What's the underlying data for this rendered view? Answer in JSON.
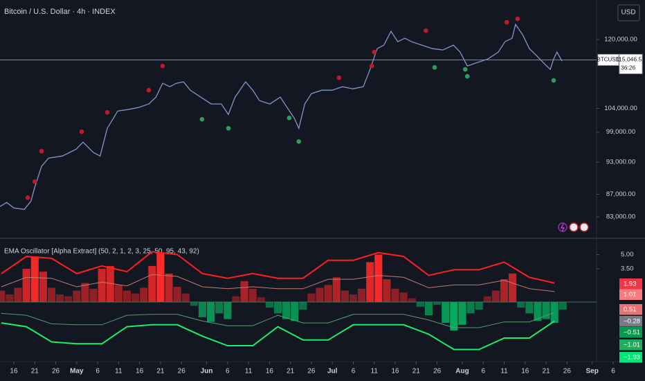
{
  "header": {
    "title": "Bitcoin / U.S. Dollar · 4h · INDEX",
    "currency": "USD"
  },
  "chart_data": [
    {
      "type": "line",
      "log_scale": true,
      "color": "#8396cc",
      "x": [
        -3.3,
        -1.7,
        0,
        2.5,
        4.1,
        5,
        6.6,
        8.3,
        11.6,
        14.9,
        16.5,
        19,
        20.6,
        22.3,
        24.8,
        27.2,
        29.7,
        32.2,
        33.9,
        35.5,
        37.2,
        38.8,
        40.5,
        42.1,
        44.6,
        47.1,
        49.5,
        51.2,
        52.8,
        55.3,
        57,
        58.6,
        61.1,
        63.6,
        65.2,
        66.9,
        68,
        69.4,
        71,
        73.5,
        76,
        78.4,
        80.9,
        83.4,
        85,
        86.7,
        88.3,
        90,
        91.6,
        93.3,
        94.9,
        97.4,
        99.9,
        102.4,
        104.9,
        106.5,
        108.2,
        110.6,
        113.1,
        115.6,
        117.2,
        118.9,
        119.7,
        121.4,
        123,
        124.7,
        126.3,
        128,
        128.8,
        129.6,
        130.8
      ],
      "values": [
        84810,
        85540,
        84550,
        84300,
        85770,
        88300,
        92190,
        93800,
        94200,
        95570,
        96960,
        94880,
        94200,
        99790,
        103450,
        103740,
        104200,
        104960,
        106470,
        109580,
        108800,
        109580,
        109910,
        108020,
        106470,
        104960,
        104960,
        102700,
        106470,
        109910,
        108020,
        105710,
        104960,
        106470,
        104200,
        101960,
        99790,
        104960,
        107240,
        108020,
        108020,
        108800,
        108330,
        108800,
        112790,
        117760,
        118620,
        122090,
        119480,
        120340,
        119480,
        118620,
        117760,
        117440,
        118620,
        116930,
        113610,
        114430,
        115250,
        116930,
        119480,
        120340,
        123860,
        121220,
        117760,
        116080,
        114430,
        112790,
        115250,
        116930,
        114750
      ],
      "markers": [
        {
          "color": "#c2182b",
          "x": [
            3.3,
            5,
            6.6,
            16.2,
            22.3,
            32.2,
            35.5,
            77.6,
            85.4,
            86,
            98.3,
            117.6,
            120.2
          ],
          "values": [
            86390,
            89310,
            95150,
            99070,
            103150,
            108020,
            113610,
            110860,
            113610,
            116930,
            122270,
            124410,
            125290
          ]
        },
        {
          "color": "#2e9e5a",
          "x": [
            44.9,
            51.2,
            65.7,
            68,
            100.4,
            107.7,
            108.2,
            128.8
          ],
          "values": [
            101680,
            99790,
            101960,
            97090,
            113270,
            112790,
            111170,
            110220
          ]
        }
      ],
      "last_price": {
        "value": 115046.51,
        "label": "115,046.51"
      },
      "symbol": "BTCUSD",
      "countdown": "36:26",
      "xlim": [
        -3.3,
        150.6
      ],
      "ylim": [
        79500,
        130300
      ],
      "yticks": [
        {
          "value": 120000,
          "label": "120,000.00"
        },
        {
          "value": 104000,
          "label": "104,000.00"
        },
        {
          "value": 99000,
          "label": "99,000.00"
        },
        {
          "value": 93000,
          "label": "93,000.00"
        },
        {
          "value": 87000,
          "label": "87,000.00"
        },
        {
          "value": 83000,
          "label": "83,000.00"
        }
      ]
    },
    {
      "type": "bar",
      "title": "EMA Oscillator [Alpha Extract] (50, 2, 1, 2, 3, 25, 50, 95, 43, 92)",
      "colors": {
        "positive": "#ff2a2a",
        "negative": "#00e676",
        "zero_line": "#3d7a5c"
      },
      "x": [
        -3,
        -1,
        1,
        3,
        5,
        7,
        9,
        11,
        13,
        15,
        17,
        19,
        21,
        23,
        25,
        27,
        29,
        31,
        33,
        35,
        37,
        39,
        41,
        43,
        45,
        47,
        49,
        51,
        53,
        55,
        57,
        59,
        61,
        63,
        65,
        67,
        69,
        71,
        73,
        75,
        77,
        79,
        81,
        83,
        85,
        87,
        89,
        91,
        93,
        95,
        97,
        99,
        101,
        103,
        105,
        107,
        109,
        111,
        113,
        115,
        117,
        119,
        121,
        123,
        125,
        127,
        129,
        131
      ],
      "values": [
        1.2,
        0.8,
        1.5,
        3.5,
        4.8,
        3.2,
        1.5,
        0.8,
        0.6,
        1.2,
        2.0,
        1.4,
        3.5,
        3.8,
        1.8,
        1.2,
        0.9,
        1.5,
        3.8,
        5.2,
        3.0,
        1.6,
        0.9,
        -0.4,
        -1.6,
        -2.1,
        -1.2,
        -1.8,
        0.6,
        2.2,
        1.4,
        0.5,
        -0.6,
        -1.2,
        -1.8,
        -2.0,
        -0.8,
        0.9,
        1.5,
        1.8,
        2.6,
        1.2,
        0.8,
        1.4,
        4.2,
        5.0,
        2.4,
        1.4,
        1.0,
        0.4,
        -0.5,
        -1.4,
        -0.3,
        -2.2,
        -3.0,
        -2.4,
        -1.2,
        -0.8,
        0.6,
        1.2,
        2.4,
        3.0,
        -0.6,
        -1.2,
        -2.0,
        -1.8,
        -2.2,
        -0.8
      ],
      "bands": {
        "x": [
          -3,
          3,
          9,
          15,
          21,
          27,
          33,
          39,
          45,
          51,
          57,
          63,
          69,
          75,
          81,
          87,
          93,
          99,
          105,
          111,
          117,
          123,
          129
        ],
        "series": [
          {
            "color": "#ff1f1f",
            "values": [
              3.0,
              4.8,
              4.6,
              3.0,
              3.8,
              3.2,
              5.3,
              5.0,
              3.0,
              2.5,
              3.0,
              2.5,
              2.5,
              4.4,
              4.4,
              5.2,
              4.8,
              2.8,
              3.4,
              3.4,
              4.2,
              2.6,
              2.0
            ]
          },
          {
            "color": "#c77a72",
            "values": [
              1.6,
              2.6,
              2.5,
              1.6,
              2.1,
              1.7,
              2.9,
              2.7,
              1.6,
              1.4,
              1.6,
              1.4,
              1.4,
              2.4,
              2.4,
              2.8,
              2.6,
              1.5,
              1.8,
              1.8,
              2.3,
              1.4,
              1.1
            ]
          },
          {
            "color": "#5f9a70",
            "values": [
              -1.2,
              -1.4,
              -2.3,
              -2.4,
              -2.4,
              -1.4,
              -1.3,
              -1.3,
              -2.0,
              -2.5,
              -2.5,
              -1.4,
              -2.2,
              -2.2,
              -1.3,
              -1.3,
              -1.3,
              -1.9,
              -2.7,
              -2.7,
              -2.1,
              -2.1,
              -1.1
            ]
          },
          {
            "color": "#1aef6a",
            "values": [
              -2.2,
              -2.6,
              -4.2,
              -4.4,
              -4.4,
              -2.6,
              -2.4,
              -2.4,
              -3.6,
              -4.6,
              -4.6,
              -2.6,
              -4.0,
              -4.0,
              -2.4,
              -2.4,
              -2.4,
              -3.4,
              -5.0,
              -5.0,
              -3.8,
              -3.8,
              -2.0
            ]
          }
        ]
      },
      "badges": {
        "values": [
          1.93,
          1.01,
          0.51,
          -0.28,
          -0.51,
          -1.01,
          -1.93
        ],
        "value_labels": [
          "1.93",
          "1.01",
          "0.51",
          "−0.28",
          "−0.51",
          "−1.01",
          "−1.93"
        ],
        "colors": [
          "#f23645",
          "#f77c80",
          "#e57373",
          "#787b86",
          "#089950",
          "#22ab5c",
          "#00e676"
        ]
      },
      "xlim": [
        -3.3,
        150.6
      ],
      "ylim": [
        -6.28,
        6.64
      ],
      "yticks": [
        {
          "value": 5,
          "label": "5.00"
        },
        {
          "value": 3.5,
          "label": "3.50"
        }
      ],
      "xticks": [
        {
          "value": 0,
          "label": "16"
        },
        {
          "value": 5,
          "label": "21"
        },
        {
          "value": 10,
          "label": "26"
        },
        {
          "value": 15,
          "label": "May"
        },
        {
          "value": 20,
          "label": "6"
        },
        {
          "value": 25,
          "label": "11"
        },
        {
          "value": 30,
          "label": "16"
        },
        {
          "value": 35,
          "label": "21"
        },
        {
          "value": 40,
          "label": "26"
        },
        {
          "value": 46,
          "label": "Jun"
        },
        {
          "value": 51,
          "label": "6"
        },
        {
          "value": 56,
          "label": "11"
        },
        {
          "value": 61,
          "label": "16"
        },
        {
          "value": 66,
          "label": "21"
        },
        {
          "value": 71,
          "label": "26"
        },
        {
          "value": 76,
          "label": "Jul"
        },
        {
          "value": 81,
          "label": "6"
        },
        {
          "value": 86,
          "label": "11"
        },
        {
          "value": 91,
          "label": "16"
        },
        {
          "value": 96,
          "label": "21"
        },
        {
          "value": 101,
          "label": "26"
        },
        {
          "value": 107,
          "label": "Aug"
        },
        {
          "value": 112,
          "label": "6"
        },
        {
          "value": 117,
          "label": "11"
        },
        {
          "value": 122,
          "label": "16"
        },
        {
          "value": 127,
          "label": "21"
        },
        {
          "value": 132,
          "label": "26"
        },
        {
          "value": 138,
          "label": "Sep"
        },
        {
          "value": 143,
          "label": "6"
        }
      ]
    }
  ]
}
